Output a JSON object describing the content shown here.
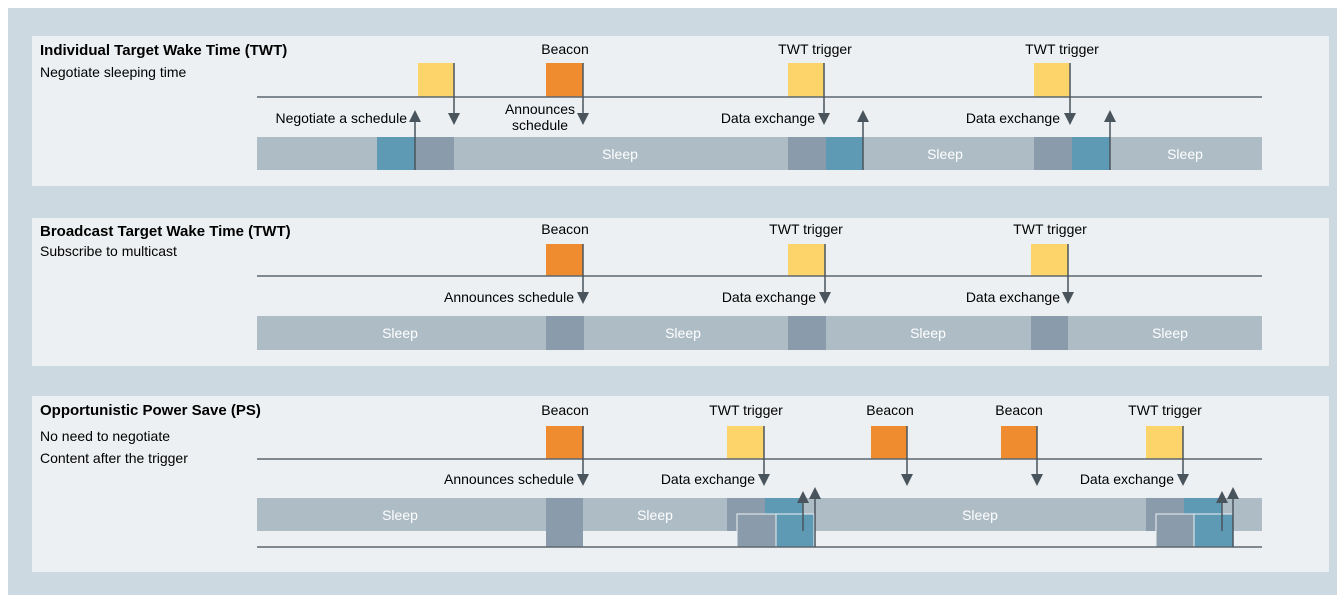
{
  "panels": [
    {
      "title": "Individual Target Wake Time (TWT)",
      "lines": [
        "Negotiate sleeping time"
      ],
      "top_labels": [
        "Beacon",
        "TWT trigger",
        "TWT trigger"
      ],
      "event_labels": [
        "Negotiate a schedule",
        "Announces",
        "schedule",
        "Data exchange",
        "Data exchange"
      ],
      "sleep": [
        "Sleep",
        "Sleep",
        "Sleep"
      ]
    },
    {
      "title": "Broadcast Target Wake Time (TWT)",
      "lines": [
        "Subscribe to multicast"
      ],
      "top_labels": [
        "Beacon",
        "TWT trigger",
        "TWT trigger"
      ],
      "event_labels": [
        "Announces schedule",
        "Data exchange",
        "Data exchange"
      ],
      "sleep": [
        "Sleep",
        "Sleep",
        "Sleep",
        "Sleep"
      ]
    },
    {
      "title": "Opportunistic Power Save (PS)",
      "lines": [
        "No need to negotiate",
        "Content after the trigger"
      ],
      "top_labels": [
        "Beacon",
        "TWT trigger",
        "Beacon",
        "Beacon",
        "TWT trigger"
      ],
      "event_labels": [
        "Announces schedule",
        "Data exchange",
        "Data exchange"
      ],
      "sleep": [
        "Sleep",
        "Sleep",
        "Sleep"
      ]
    }
  ],
  "figure_id": "G_IK10_XX_30450"
}
